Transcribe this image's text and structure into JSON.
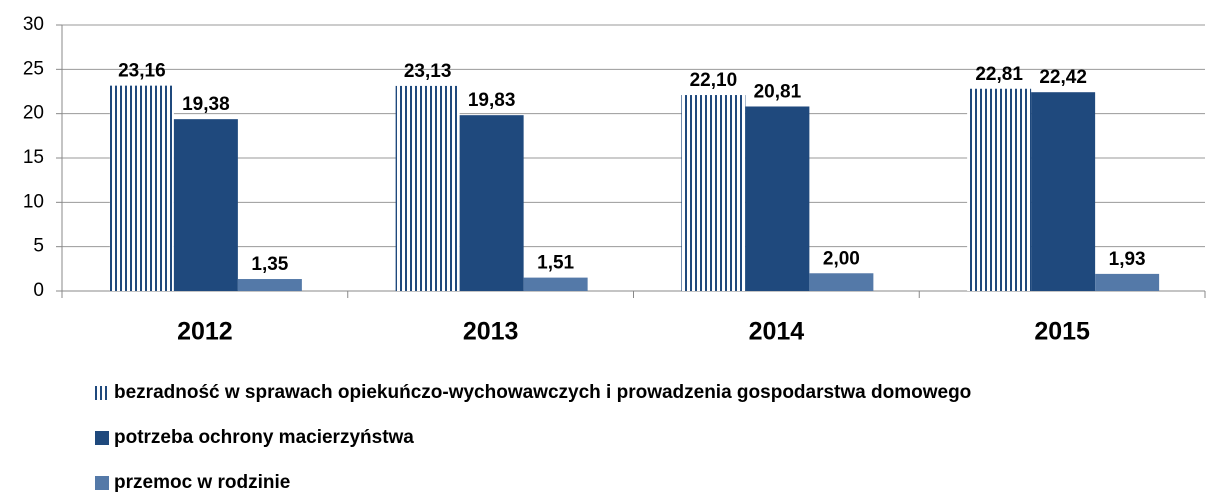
{
  "chart_data": {
    "type": "bar",
    "categories": [
      "2012",
      "2013",
      "2014",
      "2015"
    ],
    "series": [
      {
        "name": "bezradność w sprawach opiekuńczo-wychowawczych i prowadzenia gospodarstwa domowego",
        "color": "#1f497d",
        "pattern": "vertical-stripes",
        "values": [
          23.16,
          23.13,
          22.1,
          22.81
        ],
        "value_labels": [
          "23,16",
          "23,13",
          "22,10",
          "22,81"
        ]
      },
      {
        "name": "potrzeba ochrony macierzyństwa",
        "color": "#1f497d",
        "values": [
          19.38,
          19.83,
          20.81,
          22.42
        ],
        "value_labels": [
          "19,38",
          "19,83",
          "20,81",
          "22,42"
        ]
      },
      {
        "name": "przemoc w rodzinie",
        "color": "#5479a8",
        "values": [
          1.35,
          1.51,
          2.0,
          1.93
        ],
        "value_labels": [
          "1,35",
          "1,51",
          "2,00",
          "1,93"
        ]
      }
    ],
    "ylim": [
      0,
      30
    ],
    "yticks": [
      0,
      5,
      10,
      15,
      20,
      25,
      30
    ],
    "grid": true,
    "legend": "bottom"
  }
}
